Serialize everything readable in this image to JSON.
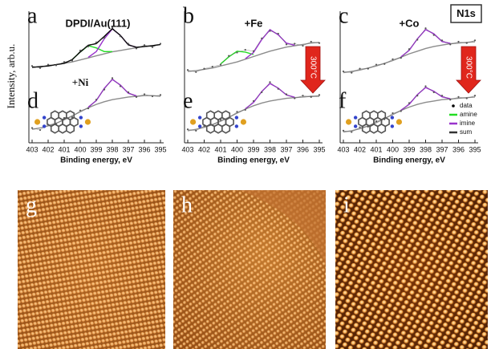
{
  "chart_data": [
    {
      "type": "line",
      "ylabel": "Intensity, arb.u.",
      "panel_letters": [
        "a",
        "d"
      ],
      "top_label": "DPDI/Au(111)",
      "bottom_label": "+Ni",
      "xlabel": "Binding energy, eV",
      "x": [
        403,
        402.5,
        402,
        401.5,
        401,
        400.5,
        400,
        399.5,
        399,
        398.5,
        398,
        397.5,
        397,
        396.5,
        396,
        395.5,
        395
      ],
      "xlim": [
        403,
        395
      ],
      "xticks": [
        403,
        402,
        401,
        400,
        399,
        398,
        397,
        396,
        395
      ],
      "ylim": [
        0,
        10
      ],
      "series": [
        {
          "color": "#8c8c8c",
          "style": "line",
          "values": [
            5.6,
            5.65,
            5.7,
            5.8,
            5.9,
            6.0,
            6.15,
            6.3,
            6.45,
            6.6,
            6.75,
            6.85,
            6.95,
            7.05,
            7.15,
            7.2,
            7.3
          ]
        },
        {
          "color": "#22dd22",
          "style": "line",
          "values": [
            null,
            null,
            null,
            null,
            null,
            6.17,
            6.74,
            7.2,
            7.04,
            6.77,
            6.77,
            null,
            null,
            null,
            null,
            null,
            null
          ]
        },
        {
          "color": "#9933cc",
          "style": "line",
          "values": [
            null,
            null,
            null,
            null,
            null,
            null,
            null,
            6.34,
            6.77,
            7.72,
            8.45,
            7.97,
            7.27,
            7.09,
            null,
            null,
            null
          ]
        },
        {
          "color": "#000000",
          "style": "line",
          "values": [
            5.6,
            5.65,
            5.7,
            5.8,
            5.9,
            6.17,
            6.74,
            7.24,
            7.36,
            7.89,
            8.47,
            7.97,
            7.27,
            7.09,
            7.15,
            7.2,
            7.3
          ]
        },
        {
          "color": "#555555",
          "style": "points",
          "values": [
            5.7,
            5.55,
            5.8,
            5.75,
            6.0,
            6.1,
            6.85,
            7.15,
            7.45,
            7.8,
            8.55,
            7.9,
            7.35,
            7.0,
            7.25,
            7.1,
            7.35
          ]
        },
        {
          "color": "#8c8c8c",
          "style": "line",
          "values": [
            1.0,
            1.1,
            1.25,
            1.45,
            1.7,
            2.0,
            2.3,
            2.6,
            2.85,
            3.05,
            3.2,
            3.3,
            3.4,
            3.45,
            3.5,
            3.5,
            3.45
          ]
        },
        {
          "color": "#9933cc",
          "style": "line",
          "values": [
            null,
            null,
            null,
            null,
            null,
            null,
            null,
            2.64,
            3.13,
            4.04,
            4.7,
            4.29,
            3.68,
            3.49,
            null,
            null,
            null
          ]
        },
        {
          "color": "#555555",
          "style": "points",
          "values": [
            1.1,
            0.95,
            1.35,
            1.4,
            1.85,
            1.9,
            2.4,
            2.55,
            3.2,
            3.95,
            4.8,
            4.2,
            3.75,
            3.4,
            3.6,
            3.45,
            3.55
          ]
        }
      ]
    },
    {
      "type": "line",
      "panel_letters": [
        "b",
        "e"
      ],
      "top_label": "+Fe",
      "arrow_label": "300°C",
      "xlabel": "Binding energy, eV",
      "x": [
        403,
        402.5,
        402,
        401.5,
        401,
        400.5,
        400,
        399.5,
        399,
        398.5,
        398,
        397.5,
        397,
        396.5,
        396,
        395.5,
        395
      ],
      "xlim": [
        403,
        395
      ],
      "xticks": [
        403,
        402,
        401,
        400,
        399,
        398,
        397,
        396,
        395
      ],
      "ylim": [
        0,
        10
      ],
      "series": [
        {
          "color": "#8c8c8c",
          "style": "line",
          "values": [
            5.3,
            5.35,
            5.45,
            5.55,
            5.7,
            5.85,
            6.0,
            6.2,
            6.4,
            6.6,
            6.8,
            6.95,
            7.1,
            7.2,
            7.3,
            7.4,
            7.45
          ]
        },
        {
          "color": "#22dd22",
          "style": "line",
          "values": [
            null,
            null,
            null,
            null,
            5.85,
            6.38,
            6.8,
            6.73,
            6.55,
            null,
            null,
            null,
            null,
            null,
            null,
            null,
            null
          ]
        },
        {
          "color": "#9933cc",
          "style": "line",
          "values": [
            null,
            null,
            null,
            null,
            null,
            null,
            null,
            6.24,
            6.7,
            7.66,
            8.4,
            8.01,
            7.4,
            7.24,
            null,
            null,
            null
          ]
        },
        {
          "color": "#555555",
          "style": "points",
          "values": [
            5.4,
            5.25,
            5.5,
            5.65,
            5.8,
            6.45,
            6.7,
            6.9,
            6.8,
            7.75,
            8.3,
            8.1,
            7.3,
            7.35,
            7.2,
            7.5,
            7.4
          ]
        },
        {
          "color": "#8c8c8c",
          "style": "line",
          "values": [
            0.9,
            1.0,
            1.15,
            1.35,
            1.6,
            1.9,
            2.2,
            2.5,
            2.75,
            2.95,
            3.1,
            3.2,
            3.3,
            3.35,
            3.4,
            3.45,
            3.45
          ]
        },
        {
          "color": "#9933cc",
          "style": "line",
          "values": [
            null,
            null,
            null,
            null,
            null,
            null,
            null,
            2.53,
            2.99,
            3.81,
            4.4,
            4.06,
            3.55,
            3.38,
            null,
            null,
            null
          ]
        },
        {
          "color": "#555555",
          "style": "points",
          "values": [
            1.0,
            0.9,
            1.25,
            1.3,
            1.7,
            1.85,
            2.3,
            2.45,
            3.1,
            3.75,
            4.5,
            4.0,
            3.6,
            3.3,
            3.5,
            3.4,
            3.55
          ]
        }
      ]
    },
    {
      "type": "line",
      "panel_letters": [
        "c",
        "f"
      ],
      "top_label": "+Co",
      "box_label": "N1s",
      "arrow_label": "300°C",
      "xlabel": "Binding energy, eV",
      "x": [
        403,
        402.5,
        402,
        401.5,
        401,
        400.5,
        400,
        399.5,
        399,
        398.5,
        398,
        397.5,
        397,
        396.5,
        396,
        395.5,
        395
      ],
      "xlim": [
        403,
        395
      ],
      "xticks": [
        403,
        402,
        401,
        400,
        399,
        398,
        397,
        396,
        395
      ],
      "ylim": [
        0,
        10
      ],
      "legend": [
        {
          "name": "data",
          "color": "#000000"
        },
        {
          "name": "amine",
          "color": "#22dd22"
        },
        {
          "name": "imine",
          "color": "#9933cc"
        },
        {
          "name": "sum",
          "color": "#333333"
        }
      ],
      "series": [
        {
          "color": "#8c8c8c",
          "style": "line",
          "values": [
            5.2,
            5.3,
            5.4,
            5.55,
            5.7,
            5.9,
            6.1,
            6.35,
            6.6,
            6.8,
            7.0,
            7.15,
            7.25,
            7.35,
            7.4,
            7.45,
            7.5
          ]
        },
        {
          "color": "#9933cc",
          "style": "line",
          "values": [
            null,
            null,
            null,
            null,
            null,
            null,
            null,
            6.38,
            6.86,
            7.72,
            8.4,
            8.09,
            7.51,
            7.38,
            null,
            null,
            null
          ]
        },
        {
          "color": "#555555",
          "style": "points",
          "values": [
            5.3,
            5.2,
            5.5,
            5.5,
            5.8,
            5.85,
            6.2,
            6.3,
            6.95,
            7.65,
            8.5,
            8.0,
            7.6,
            7.3,
            7.5,
            7.4,
            7.6
          ]
        },
        {
          "color": "#8c8c8c",
          "style": "line",
          "values": [
            0.8,
            0.9,
            1.05,
            1.25,
            1.5,
            1.8,
            2.1,
            2.4,
            2.65,
            2.85,
            3.0,
            3.1,
            3.2,
            3.25,
            3.3,
            3.35,
            3.4
          ]
        },
        {
          "color": "#9933cc",
          "style": "line",
          "values": [
            null,
            null,
            null,
            null,
            null,
            null,
            null,
            2.42,
            2.85,
            3.58,
            4.1,
            3.83,
            3.41,
            3.27,
            null,
            null,
            null
          ]
        },
        {
          "color": "#555555",
          "style": "points",
          "values": [
            0.9,
            0.8,
            1.15,
            1.2,
            1.6,
            1.75,
            2.2,
            2.35,
            2.95,
            3.5,
            4.2,
            3.75,
            3.5,
            3.2,
            3.4,
            3.3,
            3.5
          ]
        }
      ]
    }
  ],
  "images": [
    {
      "label": "g"
    },
    {
      "label": "h"
    },
    {
      "label": "i"
    }
  ]
}
